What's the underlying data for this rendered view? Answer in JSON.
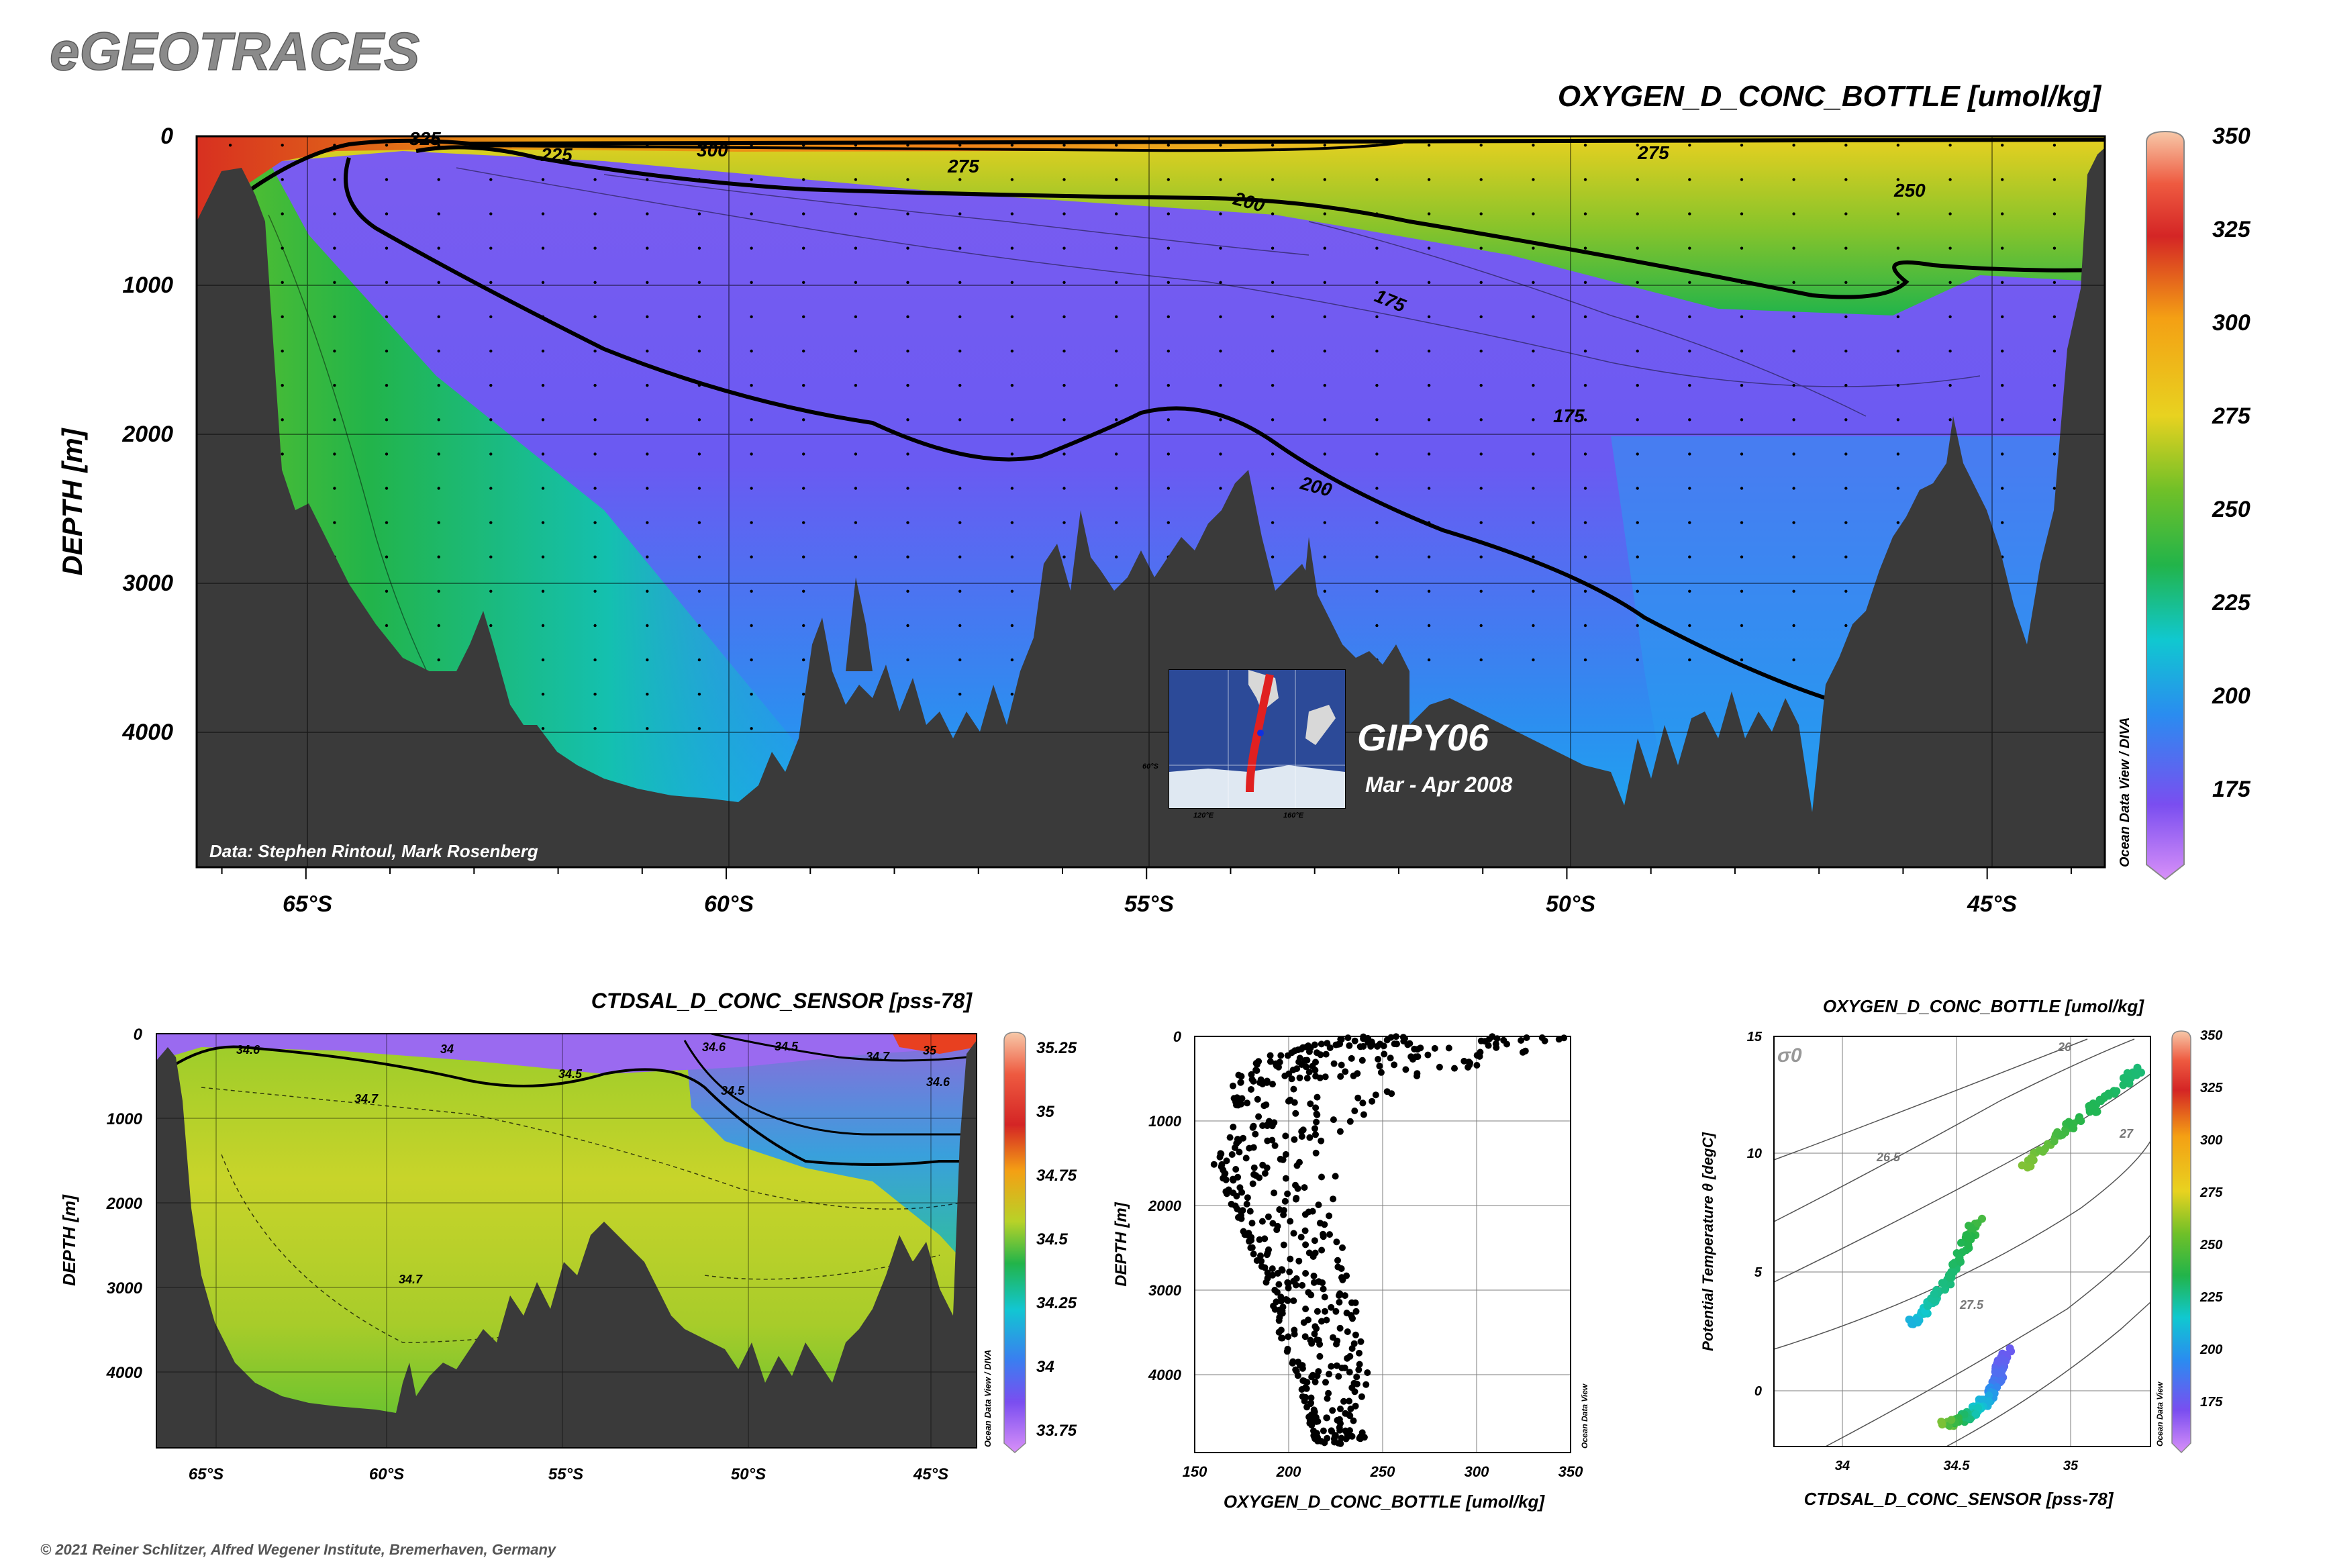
{
  "app_title": "eGEOTRACES",
  "copyright": "© 2021 Reiner Schlitzer, Alfred Wegener Institute, Bremerhaven, Germany",
  "colors": {
    "terrain": "#3a3a3a",
    "contour": "#000000",
    "title_gray": "#8a8a8a"
  },
  "chart_data": [
    {
      "type": "heatmap",
      "title": "OXYGEN_D_CONC_BOTTLE [umol/kg]",
      "ylabel": "DEPTH [m]",
      "xlabel": "",
      "x_ticks": [
        "65°S",
        "60°S",
        "55°S",
        "50°S",
        "45°S"
      ],
      "x_tick_values": [
        -65,
        -60,
        -55,
        -50,
        -45
      ],
      "xlim": [
        -66.3,
        -43.6
      ],
      "y_ticks": [
        "0",
        "1000",
        "2000",
        "3000",
        "4000"
      ],
      "y_tick_values": [
        0,
        1000,
        2000,
        3000,
        4000
      ],
      "ylim": [
        0,
        4900
      ],
      "grid": true,
      "colorbar": {
        "labels": [
          "350",
          "325",
          "300",
          "275",
          "250",
          "225",
          "200",
          "175"
        ],
        "values": [
          350,
          325,
          300,
          275,
          250,
          225,
          200,
          175
        ],
        "range": [
          155,
          350
        ],
        "side_label": "Ocean Data View / DIVA"
      },
      "contour_labels": [
        "325",
        "300",
        "225",
        "275",
        "200",
        "175",
        "275",
        "250",
        "175",
        "200"
      ],
      "data_credit": "Data: Stephen Rintoul, Mark Rosenberg",
      "cruise": {
        "name": "GIPY06",
        "dates": "Mar - Apr 2008",
        "map_ticks": [
          "60°S",
          "120°E",
          "160°E"
        ]
      }
    },
    {
      "type": "heatmap",
      "title": "CTDSAL_D_CONC_SENSOR [pss-78]",
      "ylabel": "DEPTH [m]",
      "x_ticks": [
        "65°S",
        "60°S",
        "55°S",
        "50°S",
        "45°S"
      ],
      "x_tick_values": [
        -65,
        -60,
        -55,
        -50,
        -45
      ],
      "xlim": [
        -66.3,
        -43.6
      ],
      "y_ticks": [
        "0",
        "1000",
        "2000",
        "3000",
        "4000"
      ],
      "y_tick_values": [
        0,
        1000,
        2000,
        3000,
        4000
      ],
      "ylim": [
        0,
        4900
      ],
      "grid": true,
      "colorbar": {
        "labels": [
          "35.25",
          "35",
          "34.75",
          "34.5",
          "34.25",
          "34",
          "33.75"
        ],
        "values": [
          35.25,
          35,
          34.75,
          34.5,
          34.25,
          34,
          33.75
        ],
        "range": [
          33.6,
          35.35
        ],
        "side_label": "Ocean Data View / DIVA"
      },
      "contour_labels": [
        "34.6",
        "34",
        "34.5",
        "34.7",
        "34.6",
        "34.5",
        "34.7",
        "35",
        "34.6",
        "34.5",
        "34.7"
      ]
    },
    {
      "type": "scatter",
      "title": "",
      "xlabel": "OXYGEN_D_CONC_BOTTLE [umol/kg]",
      "ylabel": "DEPTH [m]",
      "xlim": [
        150,
        350
      ],
      "x_ticks": [
        "150",
        "200",
        "250",
        "300",
        "350"
      ],
      "x_tick_values": [
        150,
        200,
        250,
        300,
        350
      ],
      "ylim": [
        0,
        4900
      ],
      "y_ticks": [
        "0",
        "1000",
        "2000",
        "3000",
        "4000"
      ],
      "y_tick_values": [
        0,
        1000,
        2000,
        3000,
        4000
      ],
      "grid": true,
      "side_label": "Ocean Data View",
      "profile": {
        "depth": [
          0,
          200,
          500,
          1000,
          1500,
          2000,
          2500,
          3000,
          3500,
          4000,
          4500,
          4800
        ],
        "o2_min": [
          235,
          190,
          170,
          172,
          160,
          170,
          180,
          190,
          195,
          205,
          210,
          215
        ],
        "o2_max": [
          350,
          330,
          270,
          235,
          225,
          225,
          230,
          235,
          240,
          245,
          245,
          240
        ]
      }
    },
    {
      "type": "scatter",
      "title": "OXYGEN_D_CONC_BOTTLE [umol/kg]",
      "xlabel": "CTDSAL_D_CONC_SENSOR [pss-78]",
      "ylabel": "Potential Temperature θ [degC]",
      "xlim": [
        33.7,
        35.35
      ],
      "x_ticks": [
        "34",
        "34.5",
        "35"
      ],
      "x_tick_values": [
        34,
        34.5,
        35
      ],
      "ylim": [
        -2.2,
        15
      ],
      "y_ticks": [
        "0",
        "5",
        "10",
        "15"
      ],
      "y_tick_values": [
        0,
        5,
        10,
        15
      ],
      "grid": true,
      "density_label": "σ0",
      "isopycnal_labels": [
        "26",
        "26.5",
        "27",
        "27.5"
      ],
      "colorbar": {
        "labels": [
          "350",
          "325",
          "300",
          "275",
          "250",
          "225",
          "200",
          "175"
        ],
        "values": [
          350,
          325,
          300,
          275,
          250,
          225,
          200,
          175
        ],
        "range": [
          155,
          350
        ],
        "side_label": "Ocean Data View"
      },
      "series": [
        {
          "salinity": [
            34.72,
            34.7,
            34.69,
            34.68,
            34.66,
            34.65,
            34.63,
            34.6,
            34.58,
            34.55,
            34.5,
            34.45
          ],
          "theta": [
            1.8,
            1.4,
            1.0,
            0.6,
            0.3,
            0.0,
            -0.3,
            -0.5,
            -0.7,
            -0.9,
            -1.1,
            -1.3
          ],
          "oxygen": [
            180,
            182,
            186,
            190,
            195,
            205,
            215,
            220,
            228,
            240,
            250,
            262
          ]
        },
        {
          "salinity": [
            34.3,
            34.35,
            34.4,
            34.45,
            34.5,
            34.55,
            34.6
          ],
          "theta": [
            3.0,
            3.4,
            4.0,
            4.6,
            5.5,
            6.5,
            7.5
          ],
          "oxygen": [
            215,
            225,
            235,
            240,
            245,
            250,
            255
          ]
        },
        {
          "salinity": [
            34.8,
            34.9,
            35.0,
            35.1,
            35.2,
            35.3
          ],
          "theta": [
            9.5,
            10.5,
            11.2,
            12.0,
            12.8,
            13.6
          ],
          "oxygen": [
            262,
            258,
            252,
            248,
            245,
            242
          ]
        }
      ]
    }
  ]
}
